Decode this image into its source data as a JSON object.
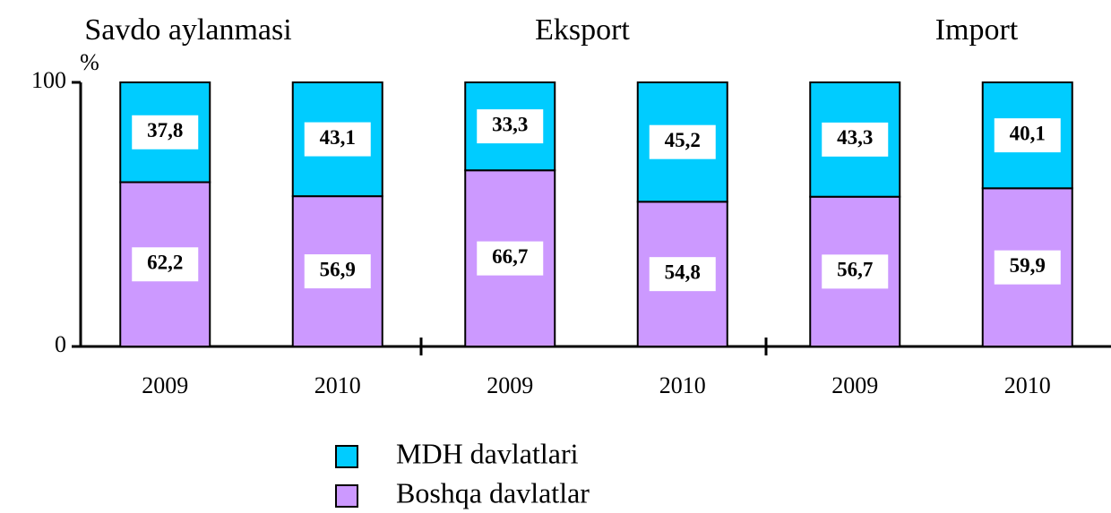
{
  "chart_data": {
    "type": "bar",
    "stacked": true,
    "groups": [
      "Savdo aylanmasi",
      "Eksport",
      "Import"
    ],
    "categories": [
      "2009",
      "2010",
      "2009",
      "2010",
      "2009",
      "2010"
    ],
    "y_label": "%",
    "ylim": [
      0,
      100
    ],
    "yticks": [
      0,
      100
    ],
    "series": [
      {
        "name": "MDH davlatlari",
        "color": "#00ccff",
        "values": [
          37.8,
          43.1,
          33.3,
          45.2,
          43.3,
          40.1
        ],
        "value_labels": [
          "37,8",
          "43,1",
          "33,3",
          "45,2",
          "43,3",
          "40,1"
        ]
      },
      {
        "name": "Boshqa davlatlar",
        "color": "#cc99ff",
        "values": [
          62.2,
          56.9,
          66.7,
          54.8,
          56.7,
          59.9
        ],
        "value_labels": [
          "62,2",
          "56,9",
          "66,7",
          "54,8",
          "56,7",
          "59,9"
        ]
      }
    ]
  }
}
